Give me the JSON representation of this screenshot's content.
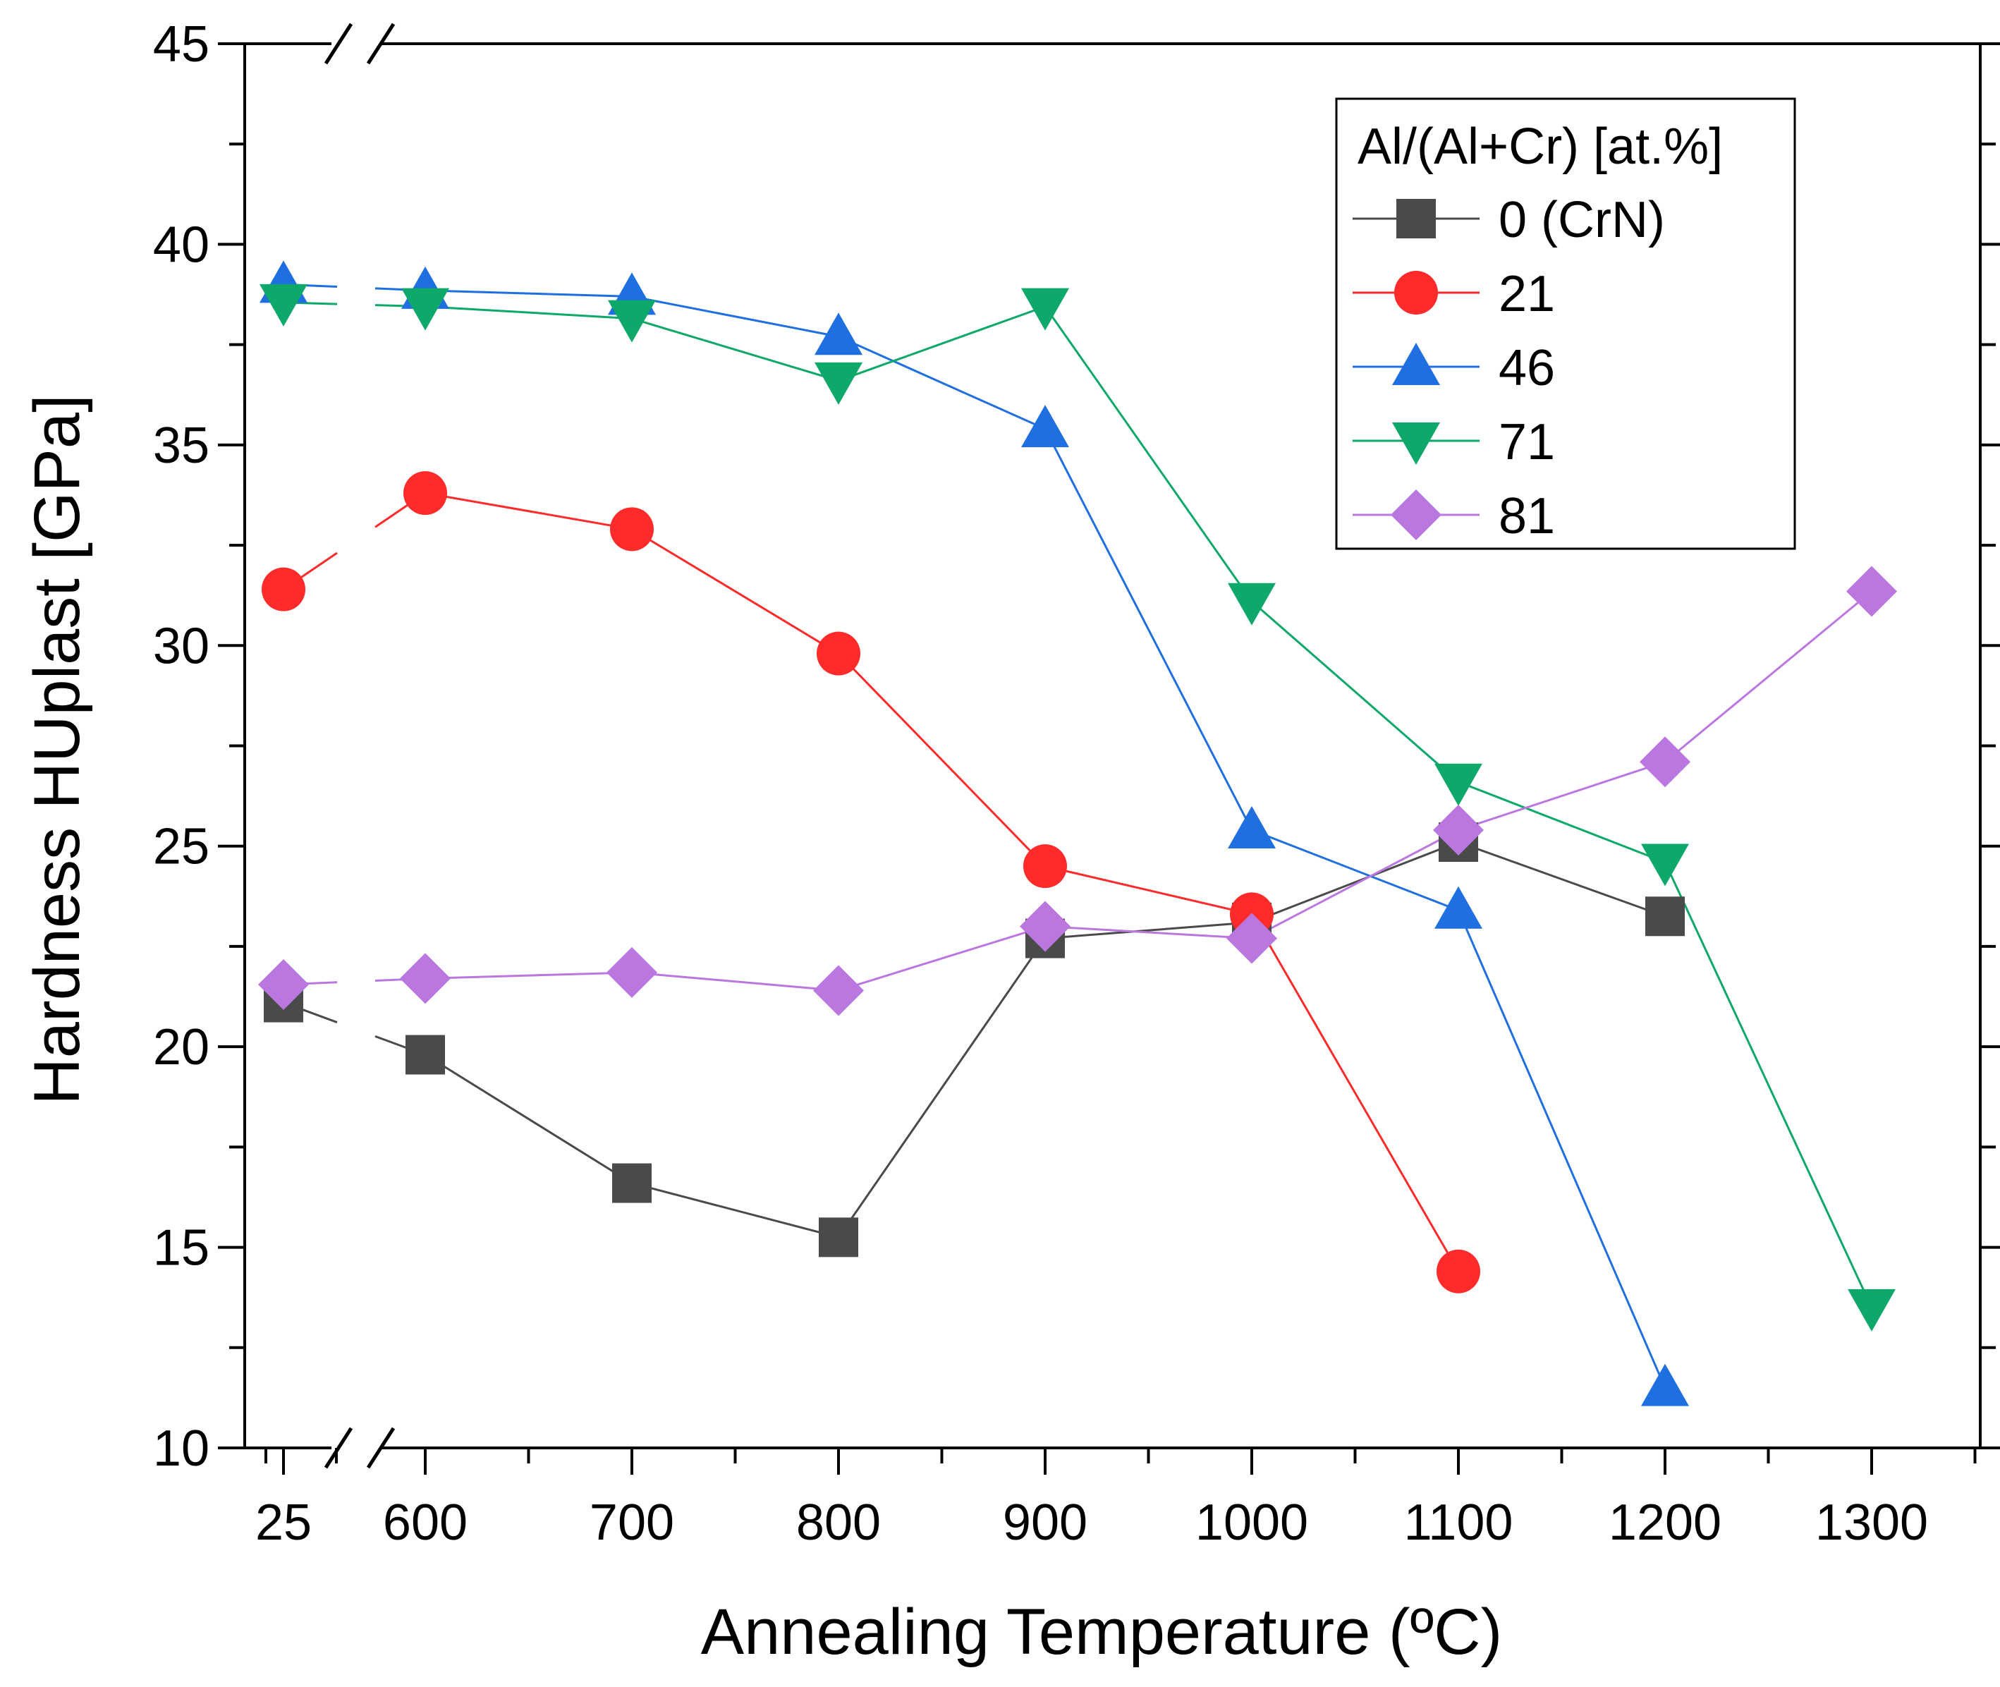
{
  "chart_data": {
    "type": "line",
    "title": "",
    "xlabel": "Annealing Temperature (ºC)",
    "ylabel": "Hardness HUplast [GPa]",
    "x_tick_labels": [
      "25",
      "600",
      "700",
      "800",
      "900",
      "1000",
      "1100",
      "1200",
      "1300"
    ],
    "x_tick_values": [
      25,
      600,
      700,
      800,
      900,
      1000,
      1100,
      1200,
      1300
    ],
    "x_axis_break": "between 25 and 600",
    "ylim": [
      10,
      45
    ],
    "y_ticks": [
      10,
      15,
      20,
      25,
      30,
      35,
      40,
      45
    ],
    "grid": false,
    "legend": {
      "title": "Al/(Al+Cr) [at.%]",
      "position": "top-right"
    },
    "series": [
      {
        "name": "0 (CrN)",
        "color": "#4a4a4a",
        "marker": "square",
        "x": [
          25,
          600,
          700,
          800,
          900,
          1000,
          1100,
          1200
        ],
        "y": [
          21.1,
          19.8,
          16.6,
          15.25,
          22.7,
          23.1,
          25.1,
          23.25
        ]
      },
      {
        "name": "21",
        "color": "#ff2a2a",
        "marker": "circle",
        "x": [
          25,
          600,
          700,
          800,
          900,
          1000,
          1100
        ],
        "y": [
          31.4,
          33.8,
          32.9,
          29.8,
          24.5,
          23.3,
          14.4
        ]
      },
      {
        "name": "46",
        "color": "#1f6fe0",
        "marker": "triangle-up",
        "x": [
          25,
          600,
          700,
          800,
          900,
          1000,
          1100,
          1200
        ],
        "y": [
          39.0,
          38.85,
          38.7,
          37.7,
          35.4,
          25.4,
          23.4,
          11.5
        ]
      },
      {
        "name": "71",
        "color": "#0ea86a",
        "marker": "triangle-down",
        "x": [
          25,
          600,
          700,
          800,
          900,
          1000,
          1100,
          1200,
          1300
        ],
        "y": [
          38.55,
          38.45,
          38.15,
          36.6,
          38.45,
          31.1,
          26.6,
          24.6,
          13.5
        ]
      },
      {
        "name": "81",
        "color": "#bb77e0",
        "marker": "diamond",
        "x": [
          25,
          600,
          700,
          800,
          900,
          1000,
          1100,
          1200,
          1300
        ],
        "y": [
          21.55,
          21.7,
          21.85,
          21.4,
          23.0,
          22.7,
          25.4,
          27.1,
          31.35
        ]
      }
    ]
  }
}
